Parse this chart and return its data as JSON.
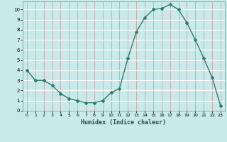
{
  "x": [
    0,
    1,
    2,
    3,
    4,
    5,
    6,
    7,
    8,
    9,
    10,
    11,
    12,
    13,
    14,
    15,
    16,
    17,
    18,
    19,
    20,
    21,
    22,
    23
  ],
  "y": [
    4.0,
    3.0,
    3.0,
    2.5,
    1.7,
    1.2,
    1.0,
    0.8,
    0.8,
    1.0,
    1.8,
    2.2,
    5.2,
    7.8,
    9.2,
    10.0,
    10.1,
    10.5,
    10.0,
    8.7,
    7.0,
    5.2,
    3.3,
    0.5
  ],
  "xlabel": "Humidex (Indice chaleur)",
  "xlim": [
    -0.5,
    23.5
  ],
  "ylim": [
    0,
    10.8
  ],
  "yticks": [
    0,
    1,
    2,
    3,
    4,
    5,
    6,
    7,
    8,
    9,
    10
  ],
  "xticks": [
    0,
    1,
    2,
    3,
    4,
    5,
    6,
    7,
    8,
    9,
    10,
    11,
    12,
    13,
    14,
    15,
    16,
    17,
    18,
    19,
    20,
    21,
    22,
    23
  ],
  "line_color": "#2e7d6e",
  "bg_color": "#c8eaea",
  "grid_color_major": "#ffffff",
  "grid_color_minor": "#e8b0b0",
  "marker": "D",
  "marker_size": 2.0,
  "line_width": 1.0
}
